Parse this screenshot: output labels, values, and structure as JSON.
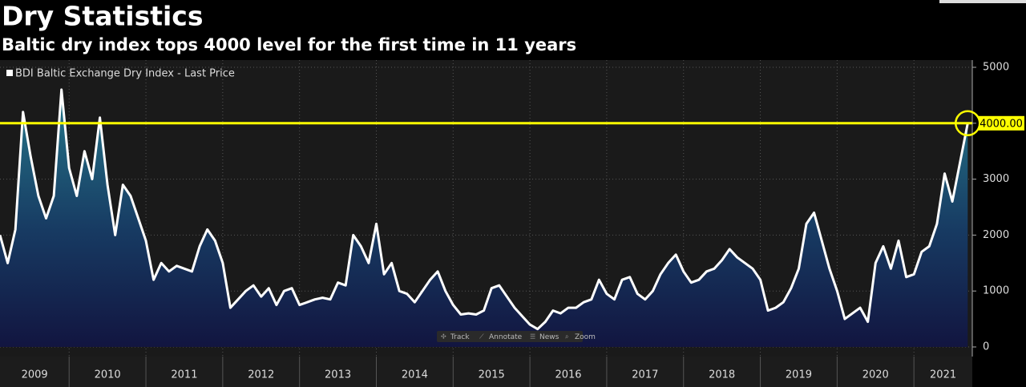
{
  "chart_data": {
    "type": "area",
    "title": "Dry Statistics",
    "subtitle": "Baltic dry index tops 4000 level for the first time in 11 years",
    "x": [
      2009.1,
      2009.2,
      2009.3,
      2009.4,
      2009.5,
      2009.6,
      2009.7,
      2009.8,
      2009.9,
      2010.0,
      2010.1,
      2010.2,
      2010.3,
      2010.4,
      2010.5,
      2010.6,
      2010.7,
      2010.8,
      2010.9,
      2011.0,
      2011.1,
      2011.2,
      2011.3,
      2011.4,
      2011.5,
      2011.6,
      2011.7,
      2011.8,
      2011.9,
      2012.0,
      2012.1,
      2012.2,
      2012.3,
      2012.4,
      2012.5,
      2012.6,
      2012.7,
      2012.8,
      2012.9,
      2013.0,
      2013.1,
      2013.2,
      2013.3,
      2013.4,
      2013.5,
      2013.6,
      2013.7,
      2013.8,
      2013.9,
      2014.0,
      2014.1,
      2014.2,
      2014.3,
      2014.4,
      2014.5,
      2014.6,
      2014.7,
      2014.8,
      2014.9,
      2015.0,
      2015.1,
      2015.2,
      2015.3,
      2015.4,
      2015.5,
      2015.6,
      2015.7,
      2015.8,
      2015.9,
      2016.0,
      2016.1,
      2016.2,
      2016.3,
      2016.4,
      2016.5,
      2016.6,
      2016.7,
      2016.8,
      2016.9,
      2017.0,
      2017.1,
      2017.2,
      2017.3,
      2017.4,
      2017.5,
      2017.6,
      2017.7,
      2017.8,
      2017.9,
      2018.0,
      2018.1,
      2018.2,
      2018.3,
      2018.4,
      2018.5,
      2018.6,
      2018.7,
      2018.8,
      2018.9,
      2019.0,
      2019.1,
      2019.2,
      2019.3,
      2019.4,
      2019.5,
      2019.6,
      2019.7,
      2019.8,
      2019.9,
      2020.0,
      2020.1,
      2020.2,
      2020.3,
      2020.4,
      2020.5,
      2020.6,
      2020.7,
      2020.8,
      2020.9,
      2021.0,
      2021.1,
      2021.2,
      2021.3,
      2021.4,
      2021.5,
      2021.6,
      2021.7
    ],
    "series": [
      {
        "name": "BDI Baltic Exchange Dry Index - Last Price",
        "color": "#ffffff",
        "values": [
          2000,
          1500,
          2100,
          4200,
          3400,
          2700,
          2300,
          2700,
          4600,
          3200,
          2700,
          3500,
          3000,
          4100,
          2900,
          2000,
          2900,
          2700,
          2300,
          1900,
          1200,
          1500,
          1350,
          1450,
          1400,
          1350,
          1800,
          2100,
          1900,
          1500,
          700,
          850,
          1000,
          1100,
          900,
          1050,
          750,
          1000,
          1050,
          750,
          800,
          850,
          880,
          850,
          1150,
          1100,
          2000,
          1800,
          1500,
          2200,
          1300,
          1500,
          1000,
          950,
          800,
          1000,
          1200,
          1350,
          1000,
          750,
          580,
          600,
          580,
          650,
          1050,
          1100,
          900,
          700,
          550,
          400,
          320,
          450,
          650,
          600,
          700,
          700,
          800,
          850,
          1200,
          950,
          850,
          1200,
          1250,
          950,
          850,
          1000,
          1300,
          1500,
          1650,
          1350,
          1150,
          1200,
          1350,
          1400,
          1550,
          1750,
          1600,
          1500,
          1400,
          1200,
          650,
          700,
          800,
          1050,
          1400,
          2200,
          2400,
          1900,
          1400,
          1000,
          500,
          600,
          700,
          450,
          1500,
          1800,
          1400,
          1900,
          1250,
          1300,
          1700,
          1800,
          2200,
          3100,
          2600,
          3300,
          4000
        ]
      }
    ],
    "xlim": [
      2009.1,
      2021.76
    ],
    "xticks": [
      2009,
      2010,
      2011,
      2012,
      2013,
      2014,
      2015,
      2016,
      2017,
      2018,
      2019,
      2020,
      2021
    ],
    "ylim": [
      0,
      5000
    ],
    "yticks": [
      0,
      1000,
      2000,
      3000,
      4000,
      5000
    ],
    "grid": true,
    "reference_line": {
      "value": 4000,
      "label": "4000.00",
      "color": "#ffff00"
    }
  },
  "toolbar": [
    "Track",
    "Annotate",
    "News",
    "Zoom"
  ]
}
